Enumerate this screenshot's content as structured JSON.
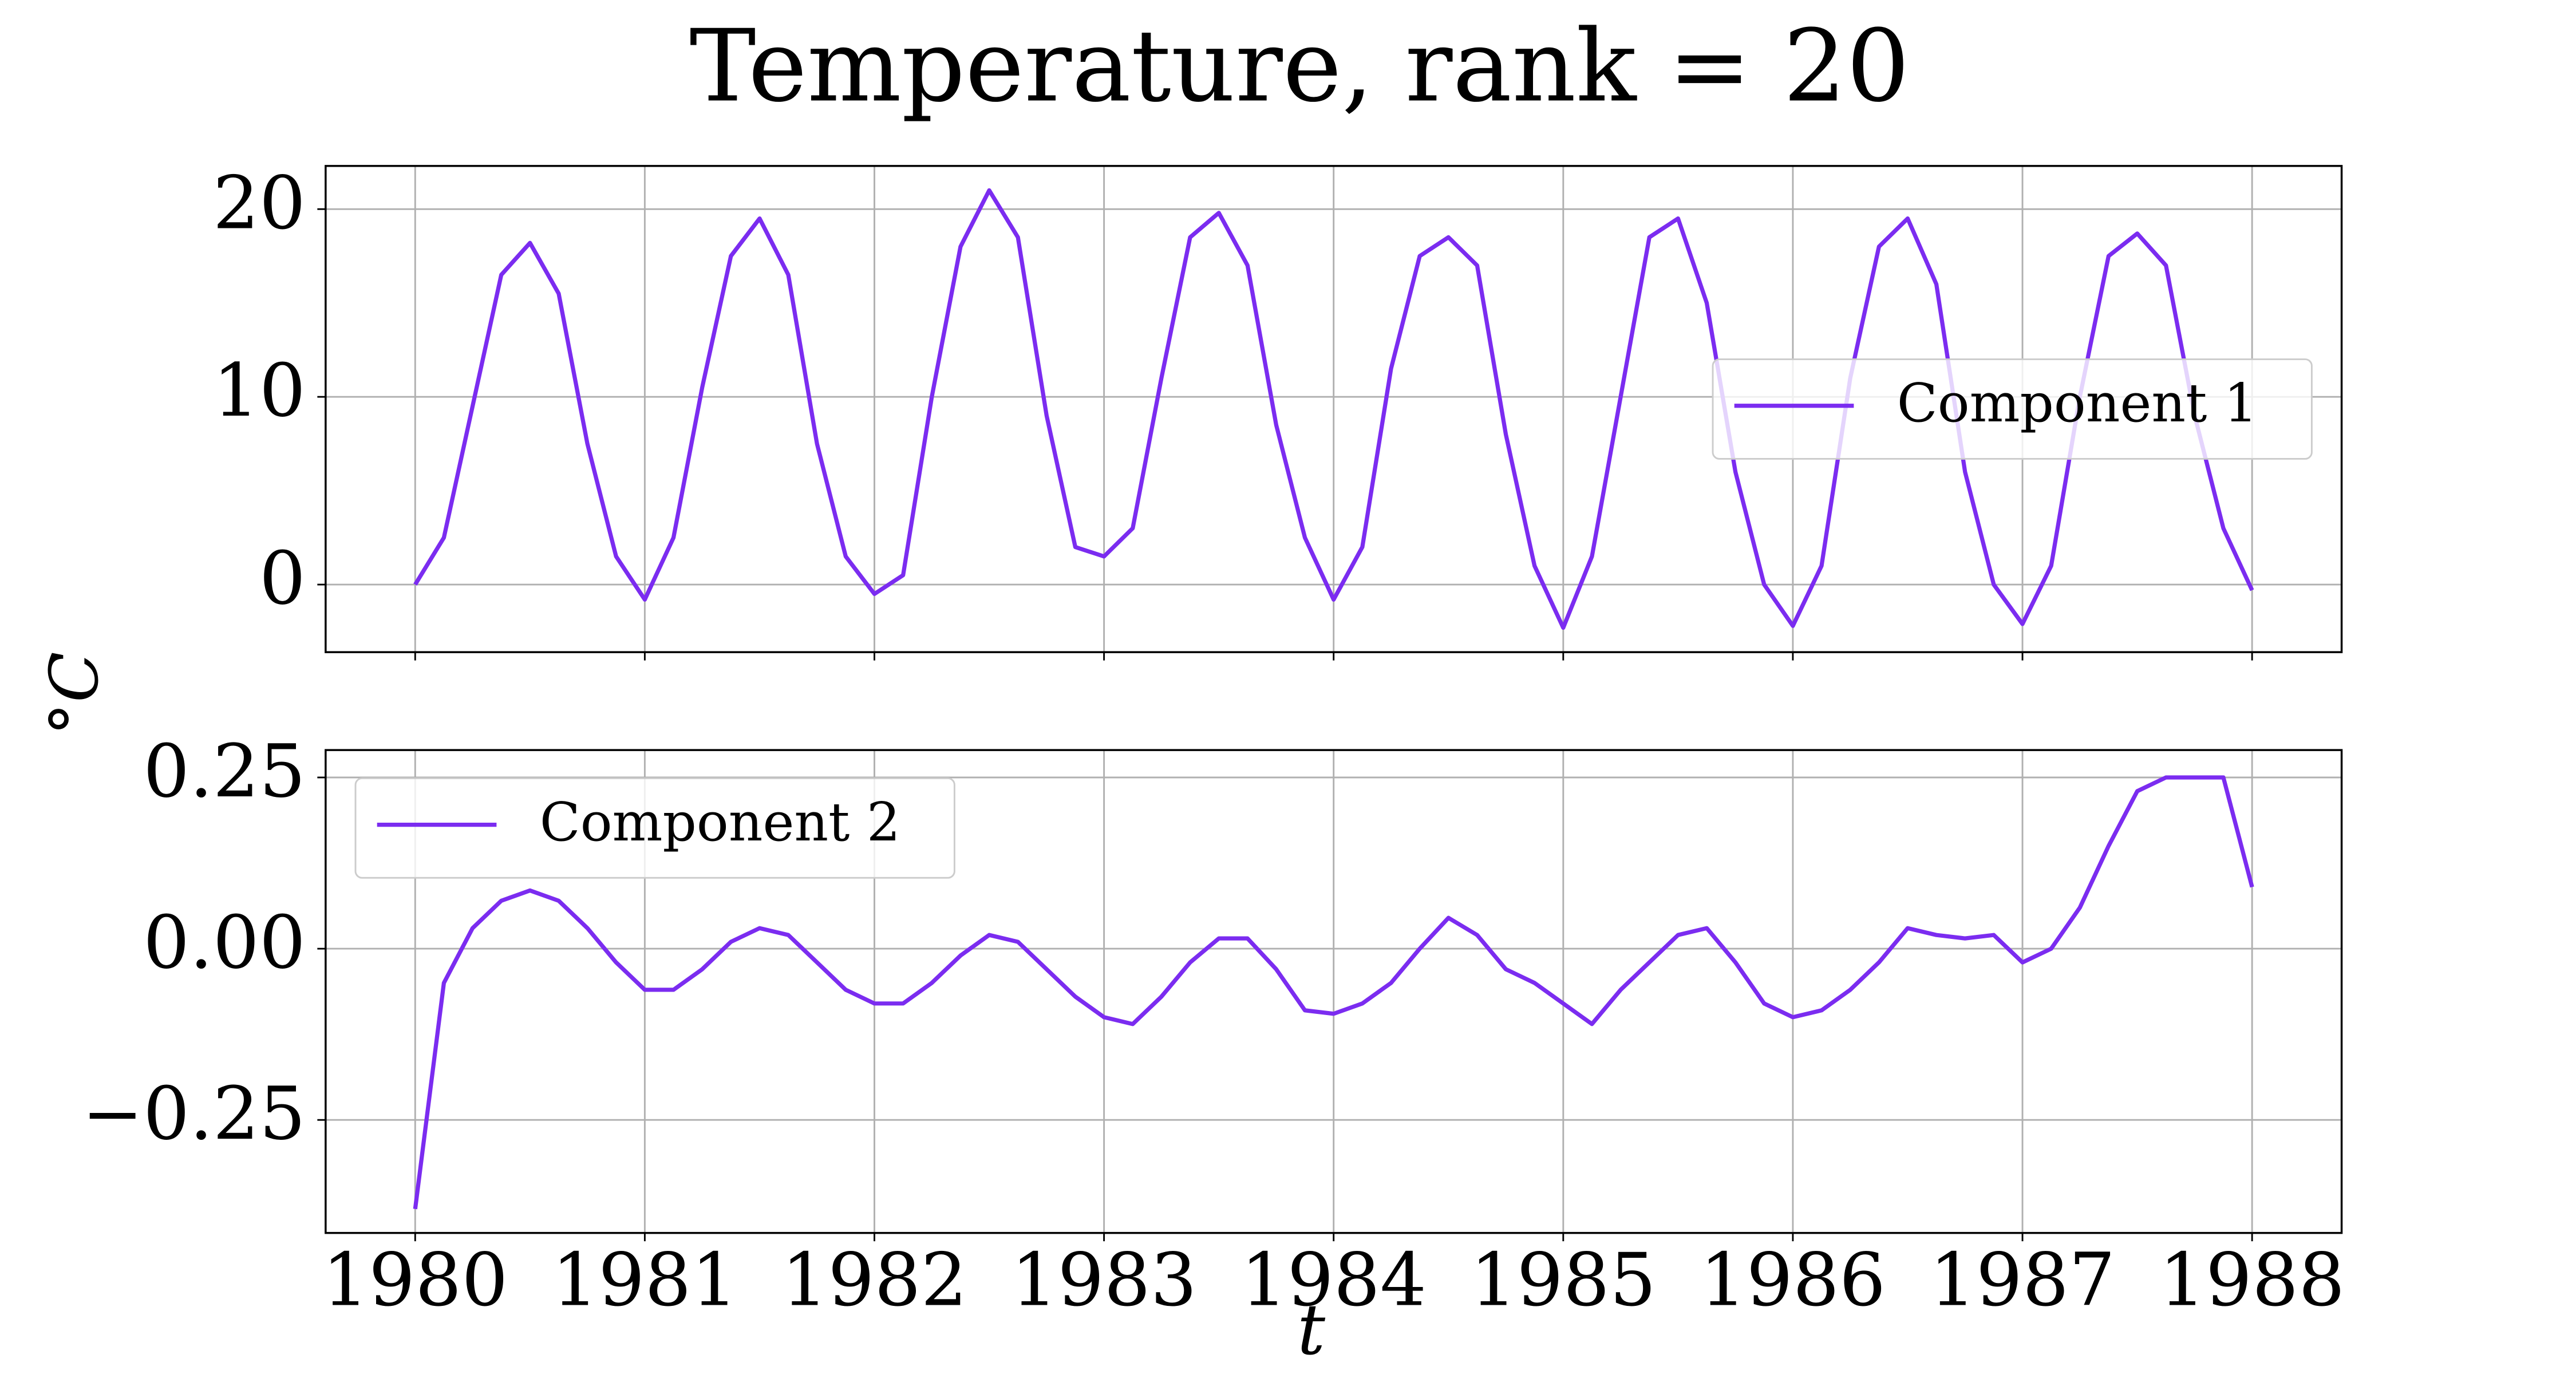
{
  "figure": {
    "title": "Temperature, rank = 20",
    "xlabel": "t",
    "ylabel": "°C"
  },
  "chart_data": [
    {
      "type": "line",
      "legend": "center right",
      "grid": true,
      "show_xtick_labels": false,
      "x": [
        1980,
        1980.125,
        1980.25,
        1980.375,
        1980.5,
        1980.625,
        1980.75,
        1980.875,
        1981,
        1981.125,
        1981.25,
        1981.375,
        1981.5,
        1981.625,
        1981.75,
        1981.875,
        1982,
        1982.125,
        1982.25,
        1982.375,
        1982.5,
        1982.625,
        1982.75,
        1982.875,
        1983,
        1983.125,
        1983.25,
        1983.375,
        1983.5,
        1983.625,
        1983.75,
        1983.875,
        1984,
        1984.125,
        1984.25,
        1984.375,
        1984.5,
        1984.625,
        1984.75,
        1984.875,
        1985,
        1985.125,
        1985.25,
        1985.375,
        1985.5,
        1985.625,
        1985.75,
        1985.875,
        1986,
        1986.125,
        1986.25,
        1986.375,
        1986.5,
        1986.625,
        1986.75,
        1986.875,
        1987,
        1987.125,
        1987.25,
        1987.375,
        1987.5,
        1987.625,
        1987.75,
        1987.875,
        1988
      ],
      "series": [
        {
          "name": "Component 1",
          "color": "#7b2cf0",
          "values": [
            0,
            2.5,
            9.5,
            16.5,
            18.2,
            15.5,
            7.5,
            1.5,
            -0.8,
            2.5,
            10.5,
            17.5,
            19.5,
            16.5,
            7.5,
            1.5,
            -0.5,
            0.5,
            10,
            18,
            21,
            18.5,
            9,
            2,
            1.5,
            3,
            11,
            18.5,
            19.8,
            17,
            8.5,
            2.5,
            -0.8,
            2,
            11.5,
            17.5,
            18.5,
            17,
            8,
            1,
            -2.3,
            1.5,
            10,
            18.5,
            19.5,
            15,
            6,
            0,
            -2.2,
            1,
            11,
            18,
            19.5,
            16,
            6,
            0,
            -2.1,
            1,
            10,
            17.5,
            18.7,
            17,
            9,
            3,
            -0.3
          ]
        }
      ],
      "xlim": [
        1979.61,
        1988.39
      ],
      "xticks": [
        1980,
        1981,
        1982,
        1983,
        1984,
        1985,
        1986,
        1987,
        1988
      ],
      "ylim": [
        -3.6,
        22.3
      ],
      "yticks": [
        0,
        10,
        20
      ]
    },
    {
      "type": "line",
      "legend": "upper left",
      "grid": true,
      "show_xtick_labels": true,
      "x": [
        1980,
        1980.125,
        1980.25,
        1980.375,
        1980.5,
        1980.625,
        1980.75,
        1980.875,
        1981,
        1981.125,
        1981.25,
        1981.375,
        1981.5,
        1981.625,
        1981.75,
        1981.875,
        1982,
        1982.125,
        1982.25,
        1982.375,
        1982.5,
        1982.625,
        1982.75,
        1982.875,
        1983,
        1983.125,
        1983.25,
        1983.375,
        1983.5,
        1983.625,
        1983.75,
        1983.875,
        1984,
        1984.125,
        1984.25,
        1984.375,
        1984.5,
        1984.625,
        1984.75,
        1984.875,
        1985,
        1985.125,
        1985.25,
        1985.375,
        1985.5,
        1985.625,
        1985.75,
        1985.875,
        1986,
        1986.125,
        1986.25,
        1986.375,
        1986.5,
        1986.625,
        1986.75,
        1986.875,
        1987,
        1987.125,
        1987.25,
        1987.375,
        1987.5,
        1987.625,
        1987.75,
        1987.875,
        1988
      ],
      "series": [
        {
          "name": "Component 2",
          "color": "#7b2cf0",
          "values": [
            -0.38,
            -0.05,
            0.03,
            0.07,
            0.085,
            0.07,
            0.03,
            -0.02,
            -0.06,
            -0.06,
            -0.03,
            0.01,
            0.03,
            0.02,
            -0.02,
            -0.06,
            -0.08,
            -0.08,
            -0.05,
            -0.01,
            0.02,
            0.01,
            -0.03,
            -0.07,
            -0.1,
            -0.11,
            -0.07,
            -0.02,
            0.015,
            0.015,
            -0.03,
            -0.09,
            -0.095,
            -0.08,
            -0.05,
            0,
            0.045,
            0.02,
            -0.03,
            -0.05,
            -0.08,
            -0.11,
            -0.06,
            -0.02,
            0.02,
            0.03,
            -0.02,
            -0.08,
            -0.1,
            -0.09,
            -0.06,
            -0.02,
            0.03,
            0.02,
            0.015,
            0.02,
            -0.02,
            0,
            0.06,
            0.15,
            0.23,
            0.25,
            0.25,
            0.25,
            0.09
          ]
        }
      ],
      "xlim": [
        1979.61,
        1988.39
      ],
      "xticks": [
        1980,
        1981,
        1982,
        1983,
        1984,
        1985,
        1986,
        1987,
        1988
      ],
      "ylim": [
        -0.415,
        0.29
      ],
      "yticks": [
        {
          "value": -0.25,
          "label": "−0.25"
        },
        {
          "value": 0,
          "label": "0.00"
        },
        {
          "value": 0.25,
          "label": "0.25"
        }
      ]
    }
  ]
}
